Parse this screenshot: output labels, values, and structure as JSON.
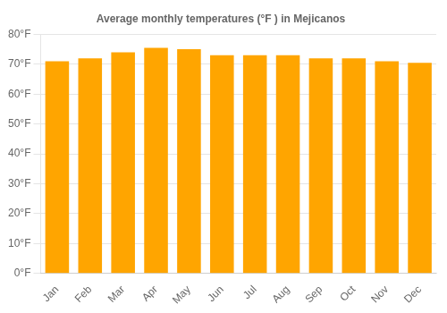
{
  "chart_data": {
    "type": "bar",
    "title": "Average monthly temperatures (°F ) in Mejicanos",
    "categories": [
      "Jan",
      "Feb",
      "Mar",
      "Apr",
      "May",
      "Jun",
      "Jul",
      "Aug",
      "Sep",
      "Oct",
      "Nov",
      "Dec"
    ],
    "values": [
      71,
      72,
      74,
      75.5,
      75,
      73,
      73,
      73,
      72,
      72,
      71,
      70.5
    ],
    "color": "#ffa500",
    "ylim": [
      0,
      80
    ],
    "yticks": [
      {
        "value": 0,
        "label": "0°F"
      },
      {
        "value": 10,
        "label": "10°F"
      },
      {
        "value": 20,
        "label": "20°F"
      },
      {
        "value": 30,
        "label": "30°F"
      },
      {
        "value": 40,
        "label": "40°F"
      },
      {
        "value": 50,
        "label": "50°F"
      },
      {
        "value": 60,
        "label": "60°F"
      },
      {
        "value": 70,
        "label": "70°F"
      },
      {
        "value": 80,
        "label": "80°F"
      }
    ],
    "grid": true
  }
}
